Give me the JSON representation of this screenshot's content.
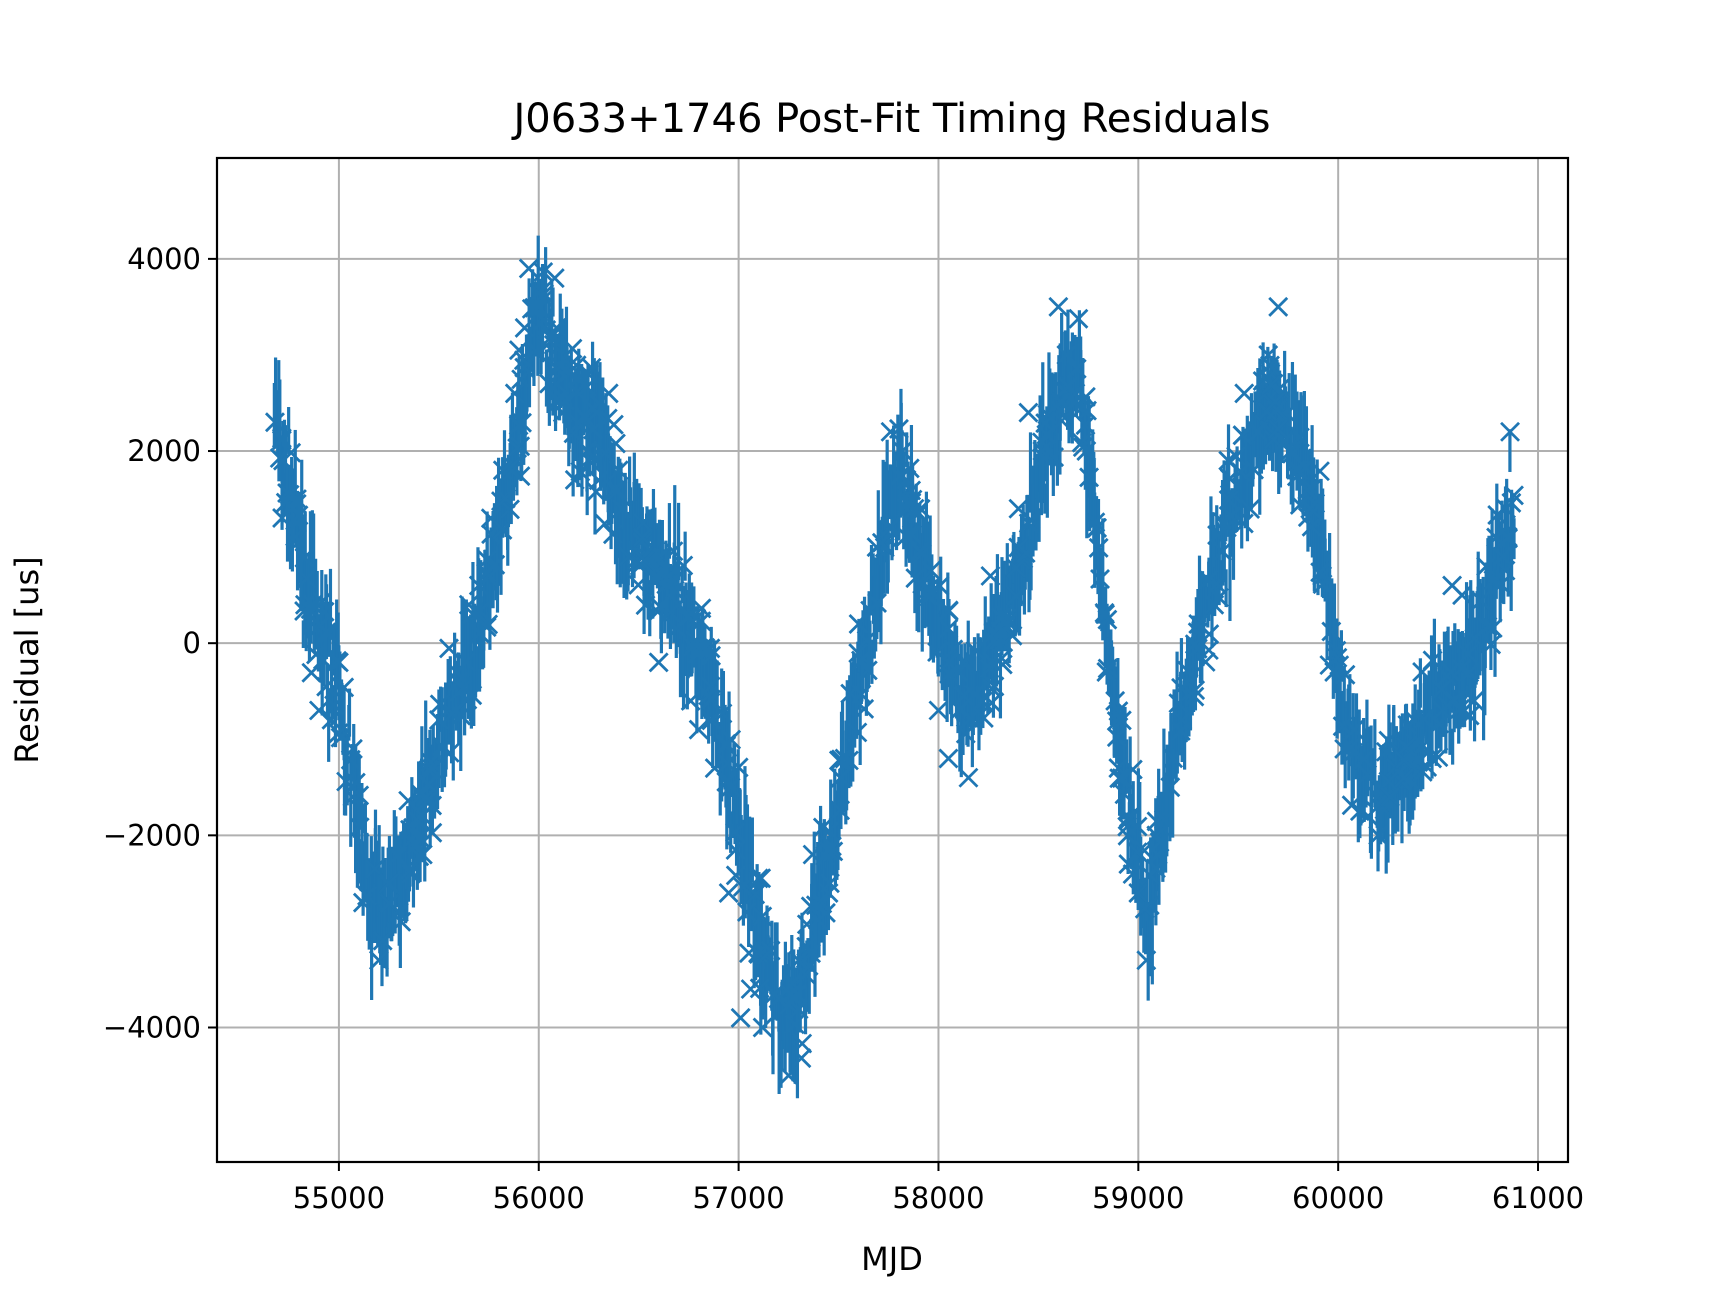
{
  "chart_data": {
    "type": "scatter",
    "title": "J0633+1746 Post-Fit Timing Residuals",
    "xlabel": "MJD",
    "ylabel": "Residual [us]",
    "xlim": [
      54390,
      61150
    ],
    "ylim": [
      -5400,
      5050
    ],
    "xticks": [
      55000,
      56000,
      57000,
      58000,
      59000,
      60000,
      61000
    ],
    "xtick_labels": [
      "55000",
      "56000",
      "57000",
      "58000",
      "59000",
      "60000",
      "61000"
    ],
    "yticks": [
      -4000,
      -2000,
      0,
      2000,
      4000
    ],
    "ytick_labels": [
      "−4000",
      "−2000",
      "0",
      "2000",
      "4000"
    ],
    "grid": true,
    "marker": "x",
    "errorbars": true,
    "color": "#1f77b4",
    "trend": {
      "x": [
        54680,
        54850,
        55000,
        55150,
        55250,
        55400,
        55550,
        55700,
        55850,
        56000,
        56150,
        56300,
        56450,
        56600,
        56750,
        56900,
        57050,
        57200,
        57300,
        57450,
        57600,
        57800,
        57950,
        58100,
        58250,
        58400,
        58550,
        58700,
        58800,
        58900,
        59050,
        59200,
        59350,
        59500,
        59650,
        59800,
        59900,
        60050,
        60200,
        60350,
        60500,
        60650,
        60750,
        60880
      ],
      "y": [
        2300,
        500,
        -500,
        -2600,
        -2700,
        -1900,
        -800,
        200,
        1600,
        3500,
        2600,
        2100,
        1200,
        800,
        200,
        -800,
        -2500,
        -3800,
        -3800,
        -2200,
        -500,
        1900,
        600,
        -600,
        -300,
        600,
        2200,
        2900,
        900,
        -1000,
        -2800,
        -900,
        500,
        1600,
        2500,
        2100,
        1200,
        -1100,
        -1500,
        -1200,
        -600,
        -300,
        400,
        1500
      ]
    },
    "points": {
      "x": [
        54680,
        54720,
        54790,
        54830,
        54870,
        54900,
        54950,
        55000,
        55070,
        55120,
        55200,
        55250,
        55300,
        55360,
        55420,
        55500,
        55600,
        55650,
        55700,
        55760,
        55820,
        55880,
        55950,
        56000,
        56040,
        56080,
        56120,
        56180,
        56250,
        56300,
        56350,
        56400,
        56450,
        56520,
        56600,
        56650,
        56700,
        56760,
        56800,
        56880,
        56950,
        57010,
        57060,
        57120,
        57160,
        57200,
        57250,
        57300,
        57370,
        57450,
        57530,
        57600,
        57690,
        57760,
        57820,
        57880,
        57940,
        58000,
        58050,
        58100,
        58150,
        58220,
        58260,
        58330,
        58400,
        58450,
        58520,
        58600,
        58640,
        58680,
        58740,
        58790,
        58840,
        58900,
        58950,
        59000,
        59040,
        59090,
        59160,
        59220,
        59300,
        59380,
        59450,
        59530,
        59600,
        59650,
        59700,
        59730,
        59800,
        59860,
        59920,
        59980,
        60030,
        60080,
        60150,
        60200,
        60260,
        60330,
        60380,
        60420,
        60470,
        60520,
        60570,
        60620,
        60680,
        60740,
        60790,
        60840,
        60860
      ],
      "y": [
        2300,
        1900,
        1500,
        400,
        200,
        -700,
        100,
        -200,
        -1100,
        -2700,
        -3300,
        -2500,
        -2800,
        -2400,
        -2200,
        -800,
        -400,
        400,
        600,
        1300,
        1800,
        2600,
        3900,
        3500,
        3100,
        3800,
        2400,
        1700,
        2800,
        2500,
        2600,
        1800,
        900,
        1100,
        -200,
        700,
        400,
        -600,
        -900,
        -1300,
        -2600,
        -3900,
        -3600,
        -4000,
        -3200,
        -3700,
        -4500,
        -3300,
        -2200,
        -2600,
        -1200,
        200,
        1000,
        2200,
        2000,
        1400,
        500,
        -700,
        -1200,
        -300,
        -1400,
        -600,
        700,
        300,
        1400,
        2400,
        2000,
        3500,
        3000,
        2500,
        2000,
        1200,
        -300,
        -1300,
        -2300,
        -2600,
        -3300,
        -2000,
        -1500,
        -800,
        200,
        400,
        1900,
        2600,
        2200,
        3000,
        3500,
        2100,
        1800,
        1400,
        700,
        -300,
        -1100,
        -900,
        -1800,
        -2000,
        -1600,
        -1400,
        -800,
        -300,
        -1200,
        -700,
        600,
        500,
        -600,
        800,
        1100,
        1400,
        2200
      ]
    }
  }
}
